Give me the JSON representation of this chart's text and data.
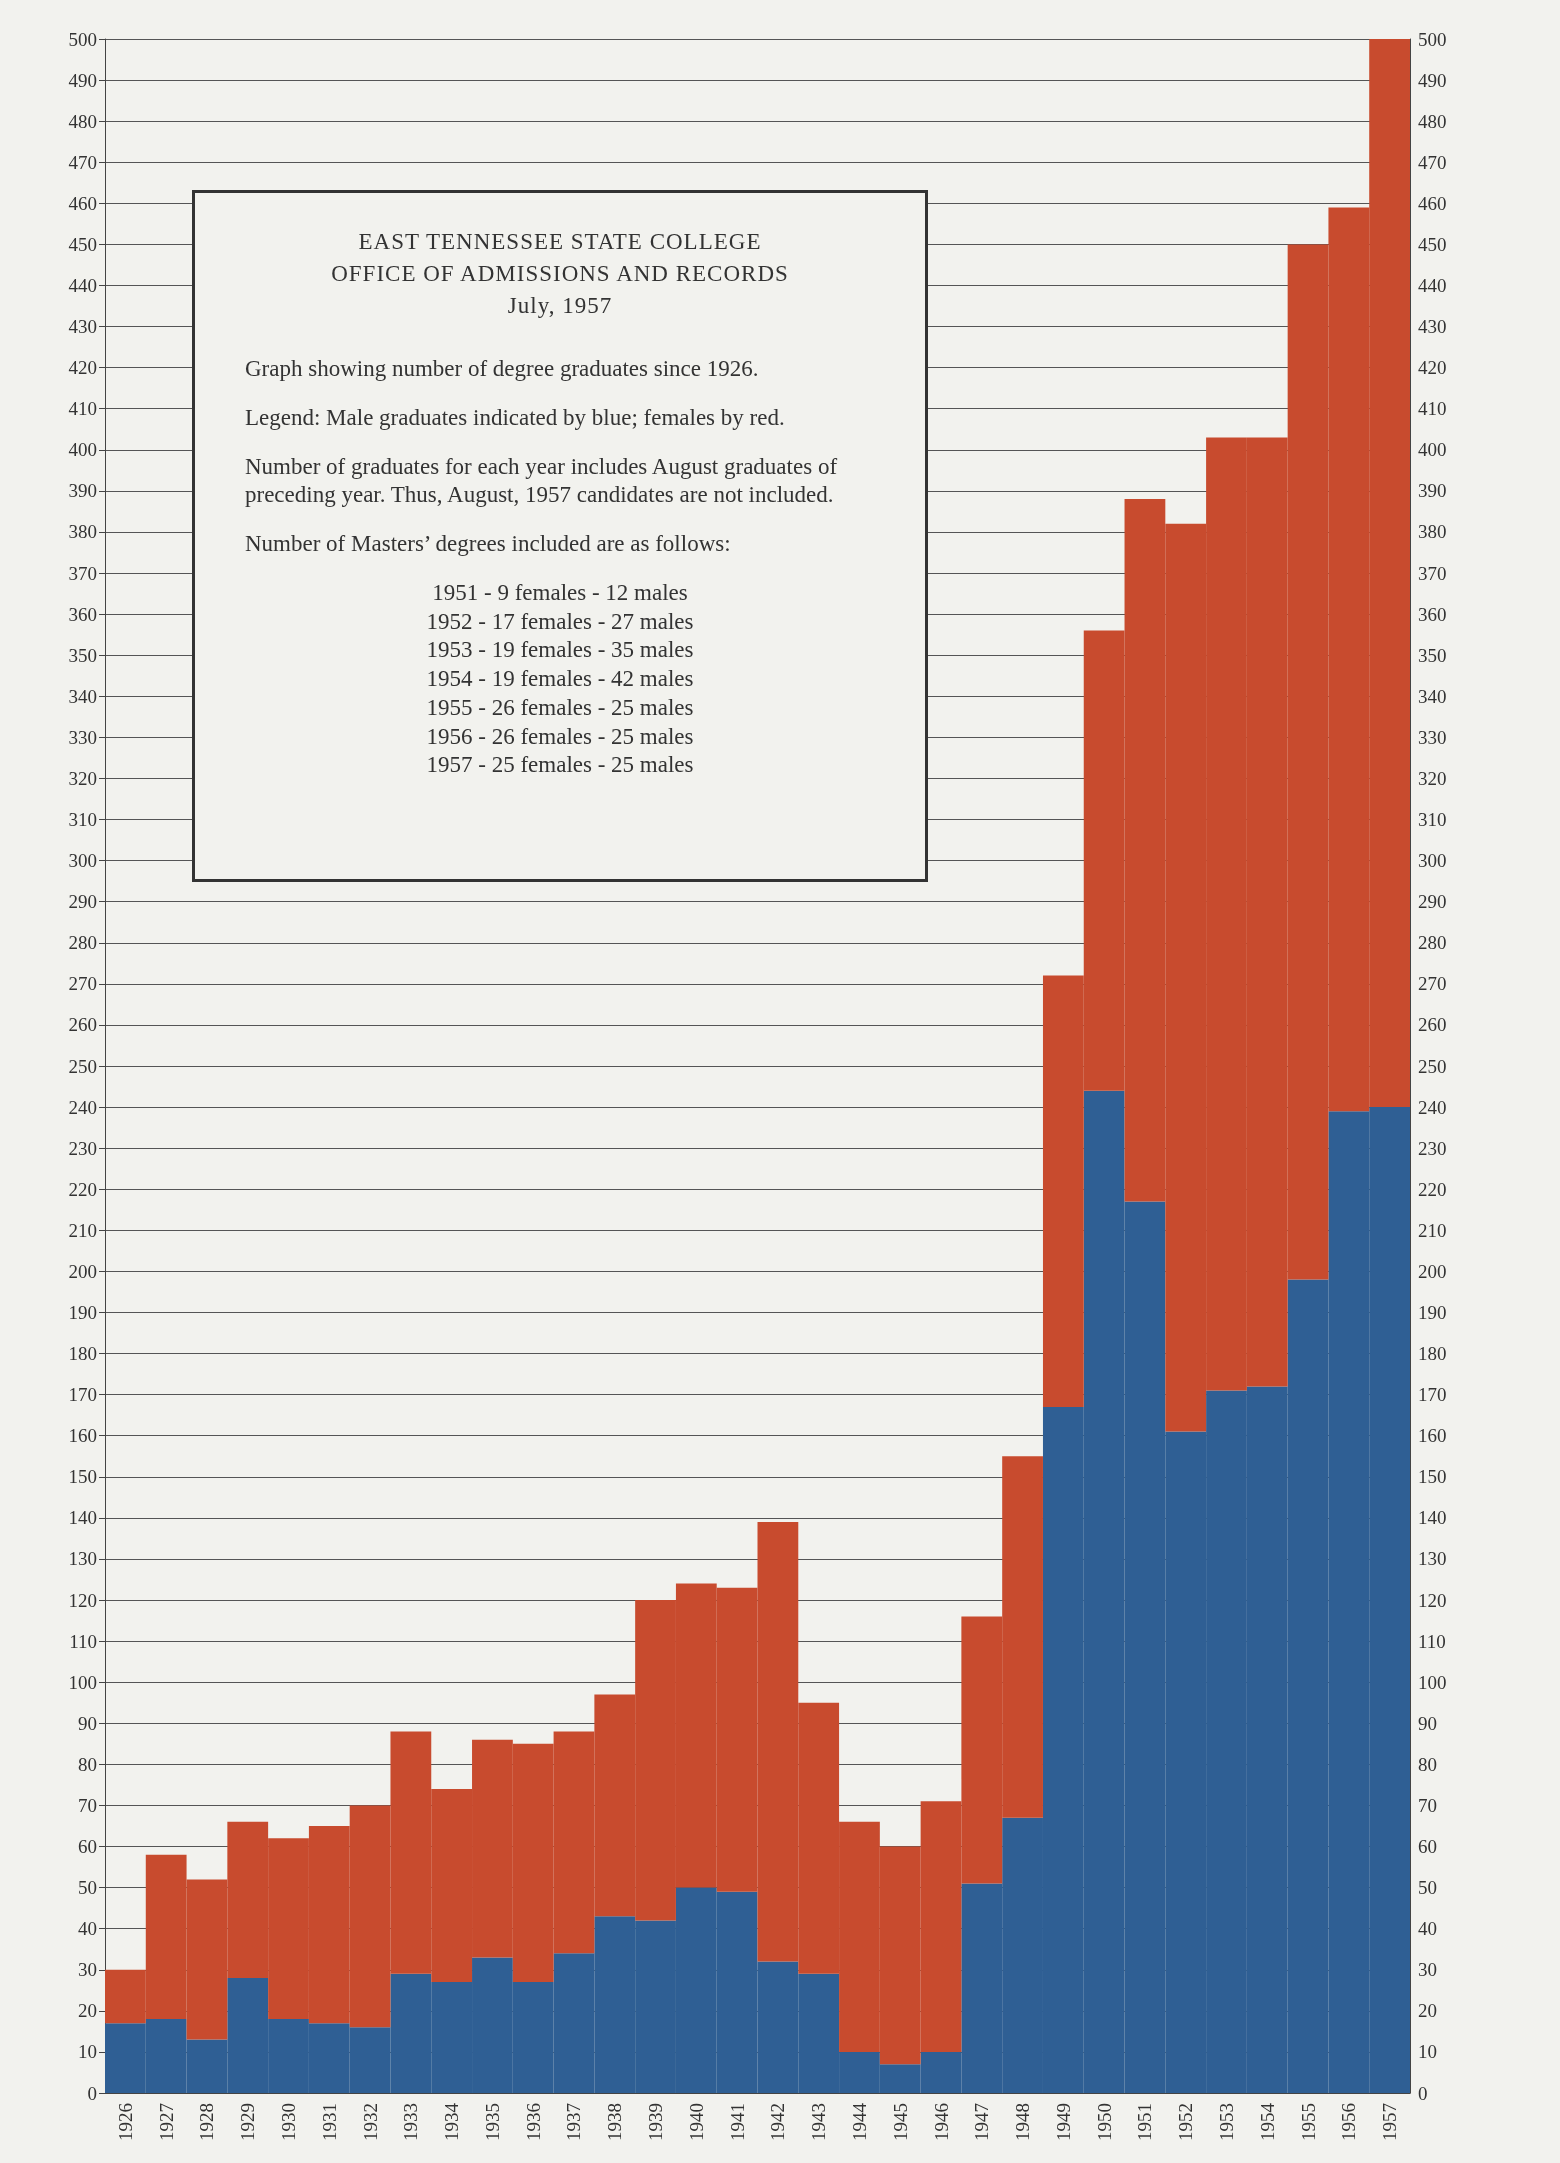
{
  "chart_data": {
    "type": "bar",
    "stacked": true,
    "grid": "y",
    "title": "EAST TENNESSEE STATE COLLEGE",
    "subtitle": "OFFICE OF ADMISSIONS AND RECORDS",
    "annotations": [
      "July, 1957",
      "Graph showing number of degree graduates since 1926.",
      "Legend: Male graduates indicated by blue; females by red.",
      "Number of graduates for each year includes August graduates of preceding year. Thus, August, 1957 candidates are not included.",
      "Number of Masters’ degrees included are as follows:",
      "1951 - 9 females - 12 males",
      "1952 - 17 females - 27 males",
      "1953 - 19 females - 35 males",
      "1954 - 19 females - 42 males",
      "1955 - 26 females - 25 males",
      "1956 - 26 females - 25 males",
      "1957 - 25 females - 25 males"
    ],
    "categories": [
      "1926",
      "1927",
      "1928",
      "1929",
      "1930",
      "1931",
      "1932",
      "1933",
      "1934",
      "1935",
      "1936",
      "1937",
      "1938",
      "1939",
      "1940",
      "1941",
      "1942",
      "1943",
      "1944",
      "1945",
      "1946",
      "1947",
      "1948",
      "1949",
      "1950",
      "1951",
      "1952",
      "1953",
      "1954",
      "1955",
      "1956",
      "1957"
    ],
    "series": [
      {
        "color": "#2f5f94",
        "values": [
          17,
          18,
          13,
          28,
          18,
          17,
          16,
          29,
          27,
          33,
          27,
          34,
          43,
          42,
          50,
          49,
          32,
          29,
          10,
          7,
          10,
          51,
          67,
          167,
          244,
          217,
          161,
          171,
          172,
          198,
          239,
          240
        ]
      },
      {
        "color": "#c84b2e",
        "values": [
          13,
          40,
          39,
          38,
          44,
          48,
          54,
          59,
          47,
          53,
          58,
          54,
          54,
          78,
          74,
          74,
          107,
          66,
          56,
          53,
          61,
          65,
          88,
          105,
          112,
          171,
          221,
          232,
          231,
          252,
          220,
          260
        ]
      }
    ],
    "ylim": [
      0,
      500
    ],
    "yticks": [
      0,
      10,
      20,
      30,
      40,
      50,
      60,
      70,
      80,
      90,
      100,
      110,
      120,
      130,
      140,
      150,
      160,
      170,
      180,
      190,
      200,
      210,
      220,
      230,
      240,
      250,
      260,
      270,
      280,
      290,
      300,
      310,
      320,
      330,
      340,
      350,
      360,
      370,
      380,
      390,
      400,
      410,
      420,
      430,
      440,
      450,
      460,
      470,
      480,
      490,
      500
    ],
    "y2lim": [
      0,
      500
    ],
    "y2ticks": [
      0,
      10,
      20,
      30,
      40,
      50,
      60,
      70,
      80,
      90,
      100,
      110,
      120,
      130,
      140,
      150,
      160,
      170,
      180,
      190,
      200,
      210,
      220,
      230,
      240,
      250,
      260,
      270,
      280,
      290,
      300,
      310,
      320,
      330,
      340,
      350,
      360,
      370,
      380,
      390,
      400,
      410,
      420,
      430,
      440,
      450,
      460,
      470,
      480,
      490,
      500
    ]
  }
}
